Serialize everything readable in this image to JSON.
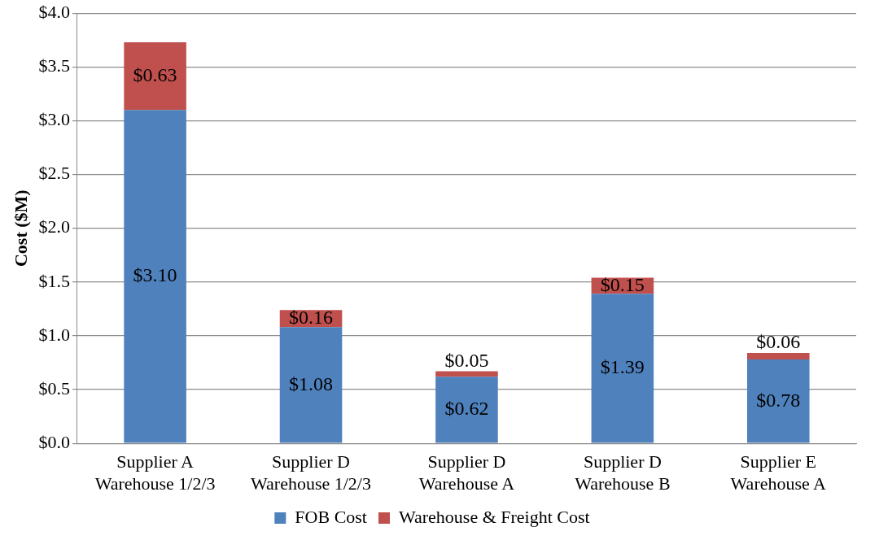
{
  "chart_data": {
    "type": "bar",
    "stacked": true,
    "ylabel": "Cost ($M)",
    "categories": [
      "Supplier A\nWarehouse 1/2/3",
      "Supplier D\nWarehouse 1/2/3",
      "Supplier D\nWarehouse A",
      "Supplier D\nWarehouse B",
      "Supplier E\nWarehouse A"
    ],
    "series": [
      {
        "name": "FOB Cost",
        "color": "#4f81bd",
        "values": [
          3.1,
          1.08,
          0.62,
          1.39,
          0.78
        ],
        "value_labels": [
          "$3.10",
          "$1.08",
          "$0.62",
          "$1.39",
          "$0.78"
        ]
      },
      {
        "name": "Warehouse & Freight Cost",
        "color": "#c0504d",
        "values": [
          0.63,
          0.16,
          0.05,
          0.15,
          0.06
        ],
        "value_labels": [
          "$0.63",
          "$0.16",
          "$0.05",
          "$0.15",
          "$0.06"
        ]
      }
    ],
    "ylim": [
      0,
      4
    ],
    "yticks": [
      {
        "value": 0,
        "label": "$0.0"
      },
      {
        "value": 0.5,
        "label": "$0.5"
      },
      {
        "value": 1,
        "label": "$1.0"
      },
      {
        "value": 1.5,
        "label": "$1.5"
      },
      {
        "value": 2,
        "label": "$2.0"
      },
      {
        "value": 2.5,
        "label": "$2.5"
      },
      {
        "value": 3,
        "label": "$3.0"
      },
      {
        "value": 3.5,
        "label": "$3.5"
      },
      {
        "value": 4,
        "label": "$4.0"
      }
    ],
    "grid": "y",
    "legend": "bottom"
  }
}
